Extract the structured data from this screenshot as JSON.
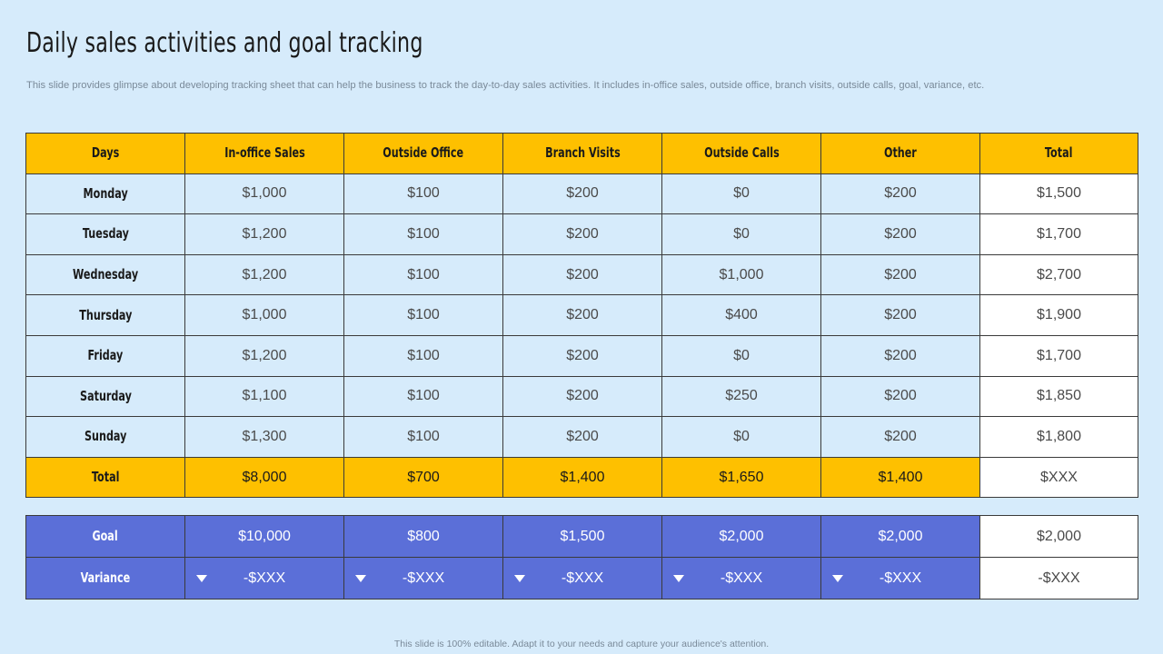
{
  "title": "Daily sales activities and goal tracking",
  "subtitle": "This slide provides glimpse about developing tracking sheet that can help the business to track the day-to-day sales activities. It includes in-office sales, outside office, branch visits, outside calls, goal, variance, etc.",
  "table": {
    "headers": [
      "Days",
      "In-office Sales",
      "Outside Office",
      "Branch Visits",
      "Outside Calls",
      "Other",
      "Total"
    ],
    "rows": [
      [
        "Monday",
        "$1,000",
        "$100",
        "$200",
        "$0",
        "$200",
        "$1,500"
      ],
      [
        "Tuesday",
        "$1,200",
        "$100",
        "$200",
        "$0",
        "$200",
        "$1,700"
      ],
      [
        "Wednesday",
        "$1,200",
        "$100",
        "$200",
        "$1,000",
        "$200",
        "$2,700"
      ],
      [
        "Thursday",
        "$1,000",
        "$100",
        "$200",
        "$400",
        "$200",
        "$1,900"
      ],
      [
        "Friday",
        "$1,200",
        "$100",
        "$200",
        "$0",
        "$200",
        "$1,700"
      ],
      [
        "Saturday",
        "$1,100",
        "$100",
        "$200",
        "$250",
        "$200",
        "$1,850"
      ],
      [
        "Sunday",
        "$1,300",
        "$100",
        "$200",
        "$0",
        "$200",
        "$1,800"
      ]
    ],
    "total": [
      "Total",
      "$8,000",
      "$700",
      "$1,400",
      "$1,650",
      "$1,400",
      "$XXX"
    ]
  },
  "goal_table": {
    "goal": [
      "Goal",
      "$10,000",
      "$800",
      "$1,500",
      "$2,000",
      "$2,000",
      "$2,000"
    ],
    "variance": [
      "Variance",
      "-$XXX",
      "-$XXX",
      "-$XXX",
      "-$XXX",
      "-$XXX",
      "-$XXX"
    ],
    "variance_icon": "triangle-down-icon"
  },
  "colors": {
    "background": "#d6ebfb",
    "header": "#fec000",
    "goal_rows": "#5b6fd8",
    "white": "#ffffff"
  },
  "footer": "This slide is 100% editable. Adapt it to your needs and capture your audience's attention."
}
